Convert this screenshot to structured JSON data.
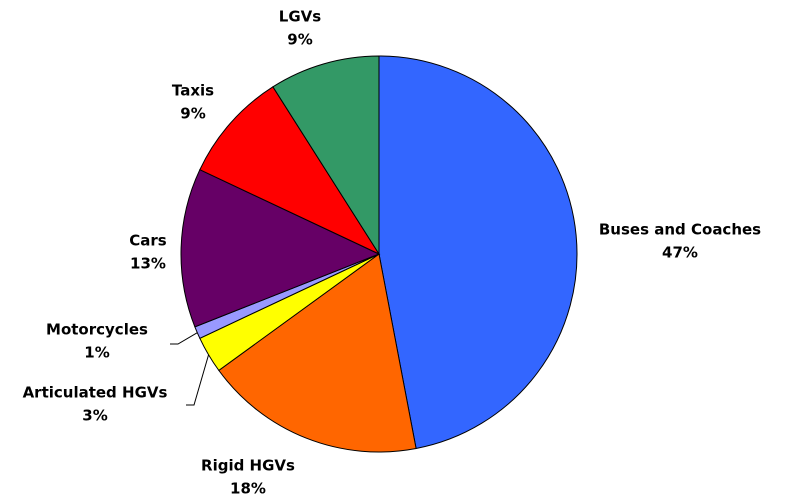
{
  "chart_data": {
    "type": "pie",
    "categories": [
      "Buses and Coaches",
      "Rigid HGVs",
      "Articulated HGVs",
      "Motorcycles",
      "Cars",
      "Taxis",
      "LGVs"
    ],
    "values": [
      47,
      18,
      3,
      1,
      13,
      9,
      9
    ],
    "value_labels": [
      "47%",
      "18%",
      "3%",
      "1%",
      "13%",
      "9%",
      "9%"
    ],
    "colors": [
      "#3366ff",
      "#ff6600",
      "#ffff00",
      "#9999ff",
      "#660066",
      "#ff0000",
      "#339966"
    ]
  }
}
